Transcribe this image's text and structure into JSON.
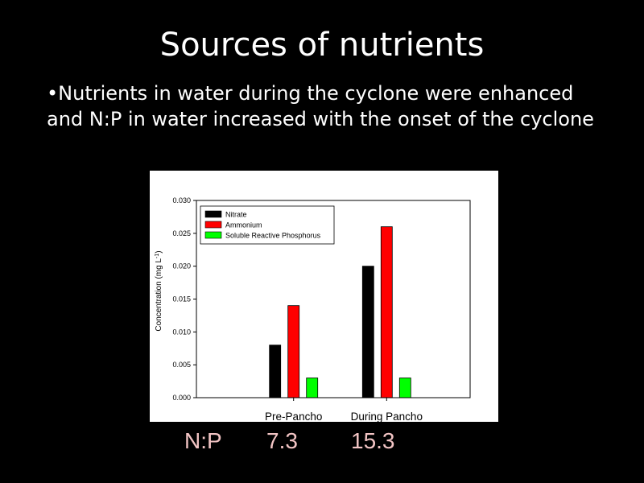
{
  "slide": {
    "title": "Sources of nutrients",
    "bullet": "•Nutrients in water during the cyclone were enhanced and N:P in water increased with the onset of the cyclone"
  },
  "ratio_row": {
    "label": "N:P",
    "values": [
      "7.3",
      "15.3"
    ],
    "color": "#f2c4c4"
  },
  "chart_data": {
    "type": "bar",
    "categories": [
      "Pre-Pancho",
      "During Pancho"
    ],
    "series": [
      {
        "name": "Nitrate",
        "values": [
          0.008,
          0.02
        ],
        "color": "#000000"
      },
      {
        "name": "Ammonium",
        "values": [
          0.014,
          0.026
        ],
        "color": "#ff0000"
      },
      {
        "name": "Soluble Reactive Phosphorus",
        "values": [
          0.003,
          0.003
        ],
        "color": "#00ff00"
      }
    ],
    "ylabel": "Concentration (mg L",
    "ylabel_superscript": "-1",
    "ylabel_suffix": ")",
    "xlabel": "",
    "ylim": [
      0,
      0.03
    ],
    "yticks": [
      "0.000",
      "0.005",
      "0.010",
      "0.015",
      "0.020",
      "0.025",
      "0.030"
    ],
    "grid": false,
    "legend": "top-left"
  }
}
